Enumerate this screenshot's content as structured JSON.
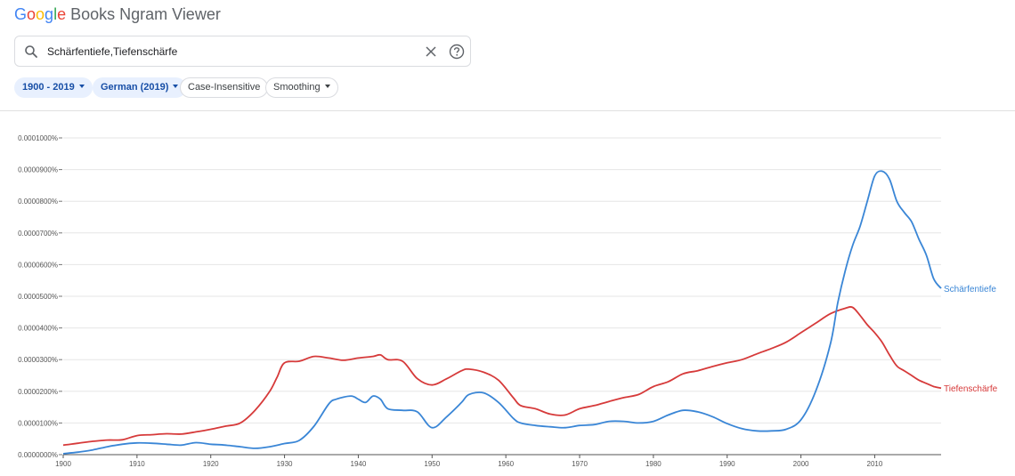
{
  "header": {
    "logo_letters": [
      {
        "char": "G",
        "color": "#4285F4"
      },
      {
        "char": "o",
        "color": "#EA4335"
      },
      {
        "char": "o",
        "color": "#FBBC05"
      },
      {
        "char": "g",
        "color": "#4285F4"
      },
      {
        "char": "l",
        "color": "#34A853"
      },
      {
        "char": "e",
        "color": "#EA4335"
      }
    ],
    "title": "Books Ngram Viewer"
  },
  "search": {
    "value": "Schärfentiefe,Tiefenschärfe",
    "icons": [
      "search-icon",
      "close-icon",
      "help-icon"
    ]
  },
  "filters": {
    "year_range": "1900 - 2019",
    "corpus": "German (2019)",
    "case": "Case-Insensitive",
    "smoothing": "Smoothing"
  },
  "chart_data": {
    "type": "line",
    "xlabel": "",
    "ylabel": "",
    "xlim": [
      1900,
      2019
    ],
    "ylim": [
      0,
      1e-06
    ],
    "x_ticks": [
      "1900",
      "1910",
      "1920",
      "1930",
      "1940",
      "1950",
      "1960",
      "1970",
      "1980",
      "1990",
      "2000",
      "2010"
    ],
    "y_ticks": [
      "0.0000000%",
      "0.0000100%",
      "0.0000200%",
      "0.0000300%",
      "0.0000400%",
      "0.0000500%",
      "0.0000600%",
      "0.0000700%",
      "0.0000800%",
      "0.0000900%",
      "0.0001000%"
    ],
    "grid": "horizontal",
    "legend": "inline-right",
    "series": [
      {
        "name": "Schärfentiefe",
        "color": "#3a86d6",
        "x": [
          1900,
          1902,
          1904,
          1906,
          1908,
          1910,
          1912,
          1914,
          1916,
          1918,
          1920,
          1922,
          1924,
          1926,
          1928,
          1930,
          1932,
          1934,
          1936,
          1937,
          1939,
          1940,
          1941,
          1942,
          1943,
          1944,
          1946,
          1948,
          1950,
          1952,
          1954,
          1955,
          1957,
          1959,
          1961,
          1962,
          1964,
          1966,
          1968,
          1970,
          1972,
          1974,
          1976,
          1978,
          1980,
          1982,
          1984,
          1986,
          1988,
          1990,
          1992,
          1994,
          1996,
          1998,
          2000,
          2002,
          2004,
          2005,
          2006,
          2007,
          2008,
          2009,
          2010,
          2011,
          2012,
          2013,
          2014,
          2015,
          2016,
          2017,
          2018,
          2019
        ],
        "values": [
          3e-09,
          8e-09,
          1.5e-08,
          2.5e-08,
          3.3e-08,
          3.7e-08,
          3.6e-08,
          3.3e-08,
          3e-08,
          3.8e-08,
          3.3e-08,
          3e-08,
          2.5e-08,
          2e-08,
          2.5e-08,
          3.5e-08,
          4.5e-08,
          9e-08,
          1.6e-07,
          1.75e-07,
          1.85e-07,
          1.75e-07,
          1.65e-07,
          1.85e-07,
          1.75e-07,
          1.45e-07,
          1.4e-07,
          1.35e-07,
          8.5e-08,
          1.2e-07,
          1.65e-07,
          1.9e-07,
          1.95e-07,
          1.65e-07,
          1.15e-07,
          1e-07,
          9.2e-08,
          8.8e-08,
          8.5e-08,
          9.2e-08,
          9.5e-08,
          1.05e-07,
          1.05e-07,
          1e-07,
          1.05e-07,
          1.25e-07,
          1.4e-07,
          1.35e-07,
          1.2e-07,
          9.8e-08,
          8.2e-08,
          7.5e-08,
          7.5e-08,
          8e-08,
          1.1e-07,
          2e-07,
          3.5e-07,
          4.8e-07,
          5.8e-07,
          6.6e-07,
          7.2e-07,
          8e-07,
          8.8e-07,
          8.95e-07,
          8.7e-07,
          8e-07,
          7.65e-07,
          7.35e-07,
          6.8e-07,
          6.3e-07,
          5.55e-07,
          5.25e-07
        ]
      },
      {
        "name": "Tiefenschärfe",
        "color": "#d63a3a",
        "x": [
          1900,
          1902,
          1904,
          1906,
          1908,
          1910,
          1912,
          1914,
          1916,
          1918,
          1920,
          1922,
          1924,
          1926,
          1928,
          1929,
          1930,
          1932,
          1934,
          1936,
          1938,
          1940,
          1942,
          1943,
          1944,
          1946,
          1948,
          1950,
          1952,
          1954,
          1955,
          1957,
          1959,
          1961,
          1962,
          1964,
          1966,
          1968,
          1970,
          1972,
          1974,
          1976,
          1978,
          1980,
          1982,
          1984,
          1986,
          1988,
          1990,
          1992,
          1994,
          1996,
          1998,
          2000,
          2002,
          2004,
          2006,
          2007,
          2008,
          2009,
          2010,
          2011,
          2012,
          2013,
          2014,
          2015,
          2016,
          2017,
          2018,
          2019
        ],
        "values": [
          3e-08,
          3.6e-08,
          4.2e-08,
          4.6e-08,
          4.7e-08,
          6e-08,
          6.3e-08,
          6.6e-08,
          6.5e-08,
          7.2e-08,
          8e-08,
          9e-08,
          1e-07,
          1.4e-07,
          2e-07,
          2.45e-07,
          2.9e-07,
          2.95e-07,
          3.1e-07,
          3.05e-07,
          2.98e-07,
          3.05e-07,
          3.1e-07,
          3.15e-07,
          3e-07,
          2.95e-07,
          2.4e-07,
          2.2e-07,
          2.4e-07,
          2.65e-07,
          2.7e-07,
          2.6e-07,
          2.35e-07,
          1.8e-07,
          1.55e-07,
          1.45e-07,
          1.28e-07,
          1.25e-07,
          1.45e-07,
          1.55e-07,
          1.68e-07,
          1.8e-07,
          1.9e-07,
          2.15e-07,
          2.3e-07,
          2.55e-07,
          2.65e-07,
          2.78e-07,
          2.9e-07,
          3e-07,
          3.18e-07,
          3.35e-07,
          3.55e-07,
          3.85e-07,
          4.15e-07,
          4.45e-07,
          4.62e-07,
          4.65e-07,
          4.4e-07,
          4.1e-07,
          3.85e-07,
          3.55e-07,
          3.15e-07,
          2.8e-07,
          2.65e-07,
          2.5e-07,
          2.35e-07,
          2.25e-07,
          2.15e-07,
          2.1e-07
        ]
      }
    ]
  }
}
